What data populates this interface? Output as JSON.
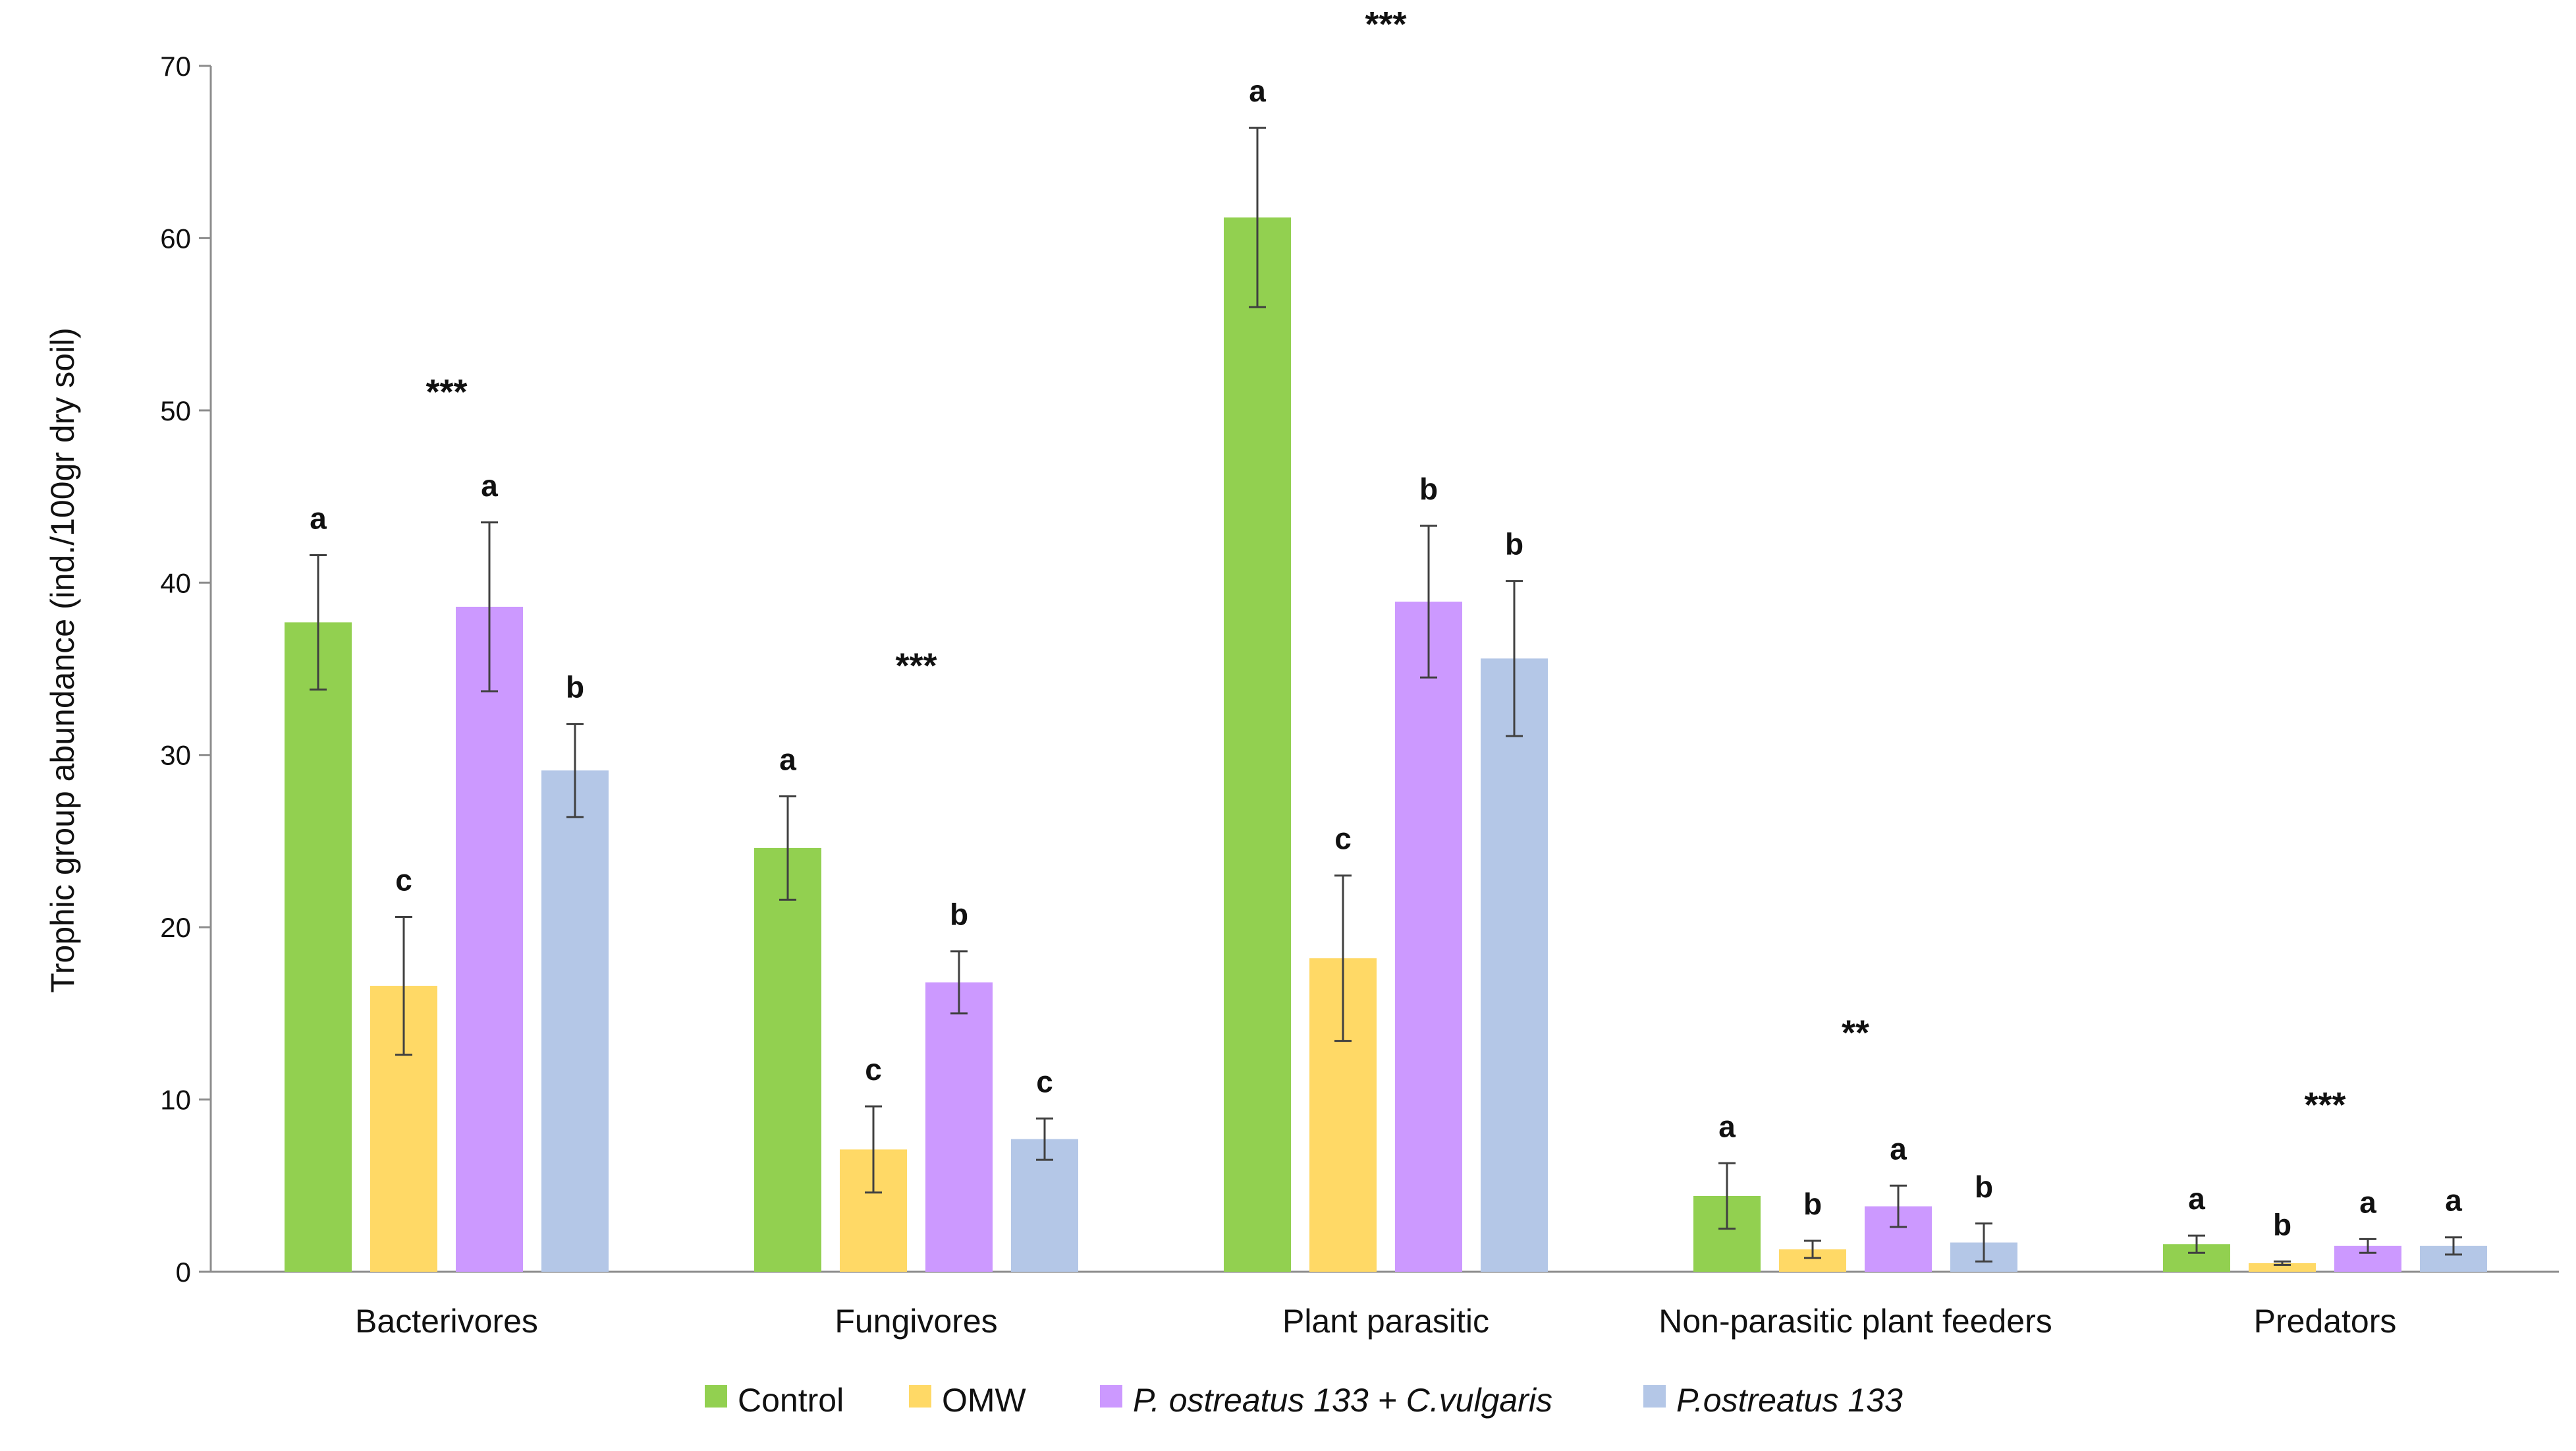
{
  "chart_data": {
    "type": "bar",
    "title": "",
    "xlabel": "",
    "ylabel": "Trophic group abundance (ind./100gr dry soil)",
    "ylim": [
      0,
      70
    ],
    "yticks": [
      0,
      10,
      20,
      30,
      40,
      50,
      60,
      70
    ],
    "grid": false,
    "legend_position": "bottom",
    "categories": [
      "Bacterivores",
      "Fungivores",
      "Plant parasitic",
      "Non-parasitic plant feeders",
      "Predators"
    ],
    "significance": [
      "***",
      "***",
      "***",
      "**",
      "***"
    ],
    "series": [
      {
        "name": "Control",
        "italic": false,
        "color": "#92d050",
        "values": [
          37.7,
          24.6,
          61.2,
          4.4,
          1.6
        ],
        "errors": [
          3.9,
          3.0,
          5.2,
          1.9,
          0.5
        ],
        "letters": [
          "a",
          "a",
          "a",
          "a",
          "a"
        ]
      },
      {
        "name": "OMW",
        "italic": false,
        "color": "#ffd966",
        "values": [
          16.6,
          7.1,
          18.2,
          1.3,
          0.5
        ],
        "errors": [
          4.0,
          2.5,
          4.8,
          0.5,
          0.1
        ],
        "letters": [
          "c",
          "c",
          "c",
          "b",
          "b"
        ]
      },
      {
        "name": "P. ostreatus 133 + C.vulgaris",
        "italic": true,
        "color": "#cc99ff",
        "values": [
          38.6,
          16.8,
          38.9,
          3.8,
          1.5
        ],
        "errors": [
          4.9,
          1.8,
          4.4,
          1.2,
          0.4
        ],
        "letters": [
          "a",
          "b",
          "b",
          "a",
          "a"
        ]
      },
      {
        "name": "P.ostreatus 133",
        "italic": true,
        "color": "#b4c7e7",
        "values": [
          29.1,
          7.7,
          35.6,
          1.7,
          1.5
        ],
        "errors": [
          2.7,
          1.2,
          4.5,
          1.1,
          0.5
        ],
        "letters": [
          "b",
          "c",
          "b",
          "b",
          "a"
        ]
      }
    ]
  }
}
